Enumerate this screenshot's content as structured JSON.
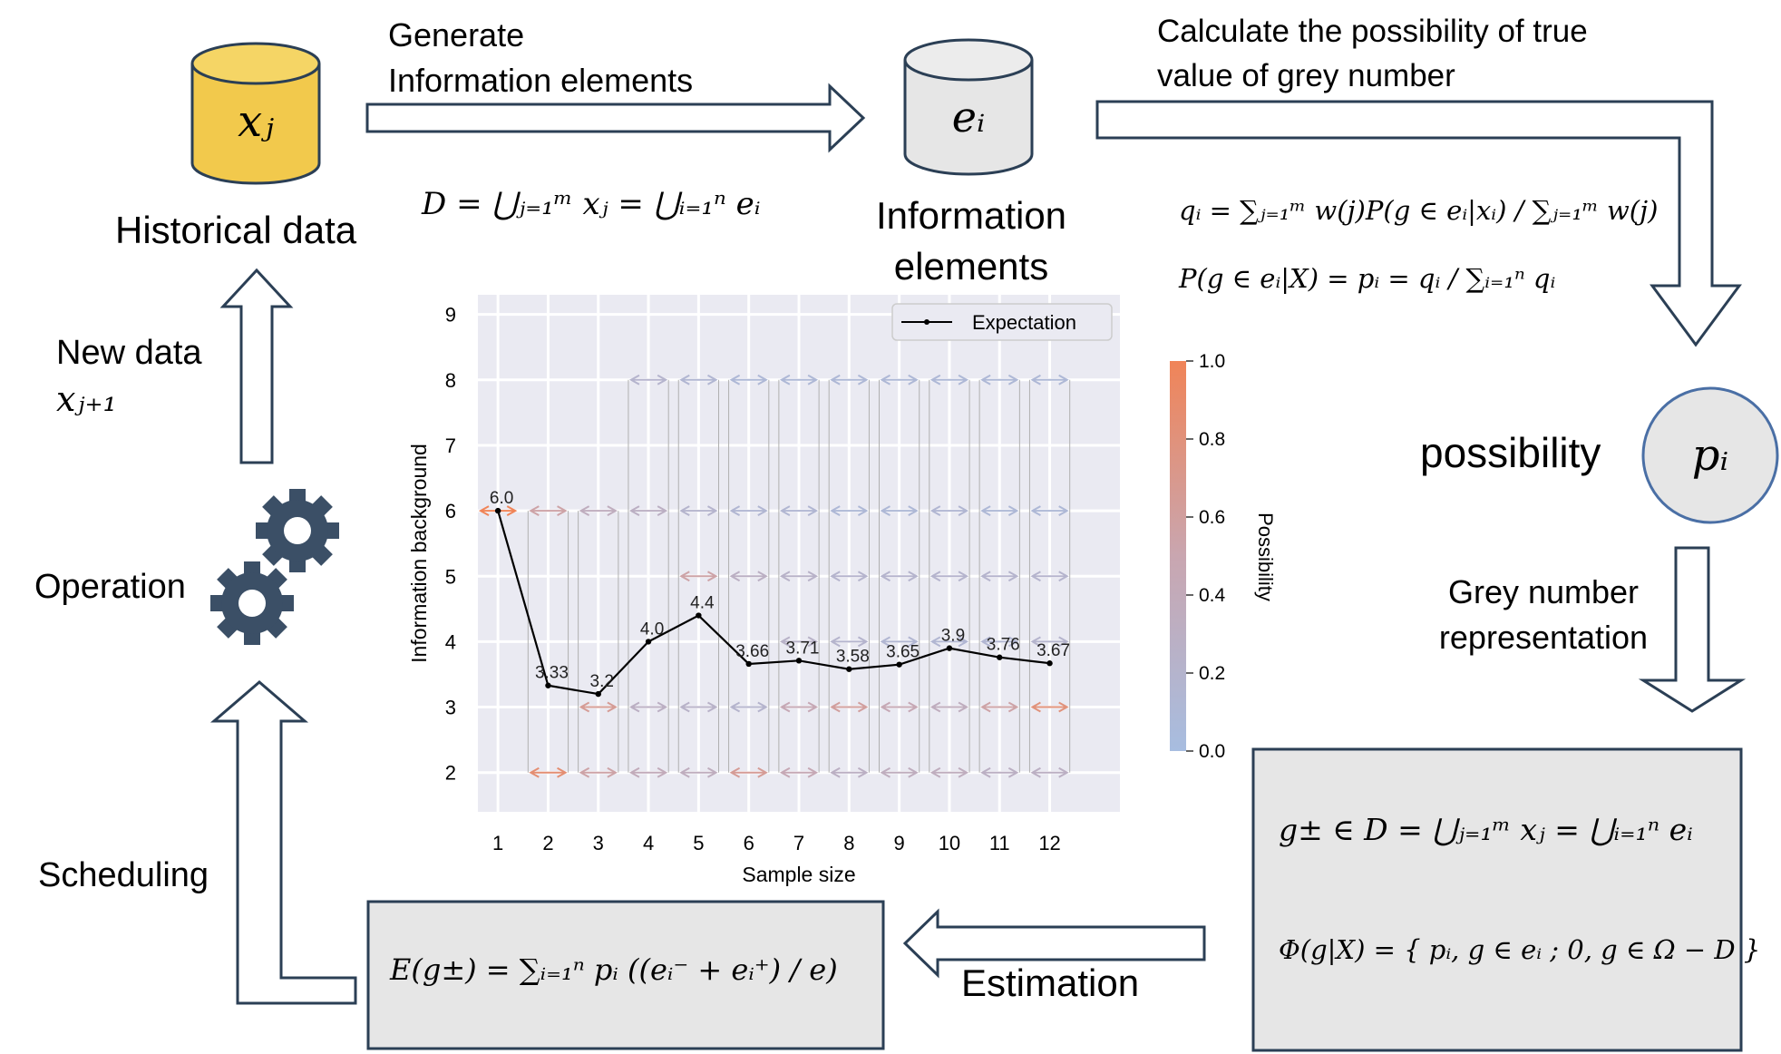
{
  "labels": {
    "generate": [
      "Generate",
      "Information elements"
    ],
    "calculate": [
      "Calculate the possibility of true",
      "value of grey number"
    ],
    "historical": "Historical data",
    "info_elements": [
      "Information",
      "elements"
    ],
    "new_data": "New data",
    "operation": "Operation",
    "scheduling": "Scheduling",
    "possibility": "possibility",
    "grey_repr": [
      "Grey number",
      "representation"
    ],
    "estimation": "Estimation"
  },
  "formulas": {
    "xj": "xⱼ",
    "ei": "eᵢ",
    "pi": "pᵢ",
    "new_x": "xⱼ₊₁",
    "union": "D = ⋃ⱼ₌₁ᵐ xⱼ = ⋃ᵢ₌₁ⁿ eᵢ",
    "qi": "qᵢ = ∑ⱼ₌₁ᵐ w(j)P(g ∈ eᵢ|xᵢ) / ∑ⱼ₌₁ᵐ w(j)",
    "pg": "P(g ∈ eᵢ|X) = pᵢ = qᵢ / ∑ᵢ₌₁ⁿ qᵢ",
    "grey_set": "g± ∈ D = ⋃ⱼ₌₁ᵐ xⱼ = ⋃ᵢ₌₁ⁿ eᵢ",
    "phi": "Φ(g|X) = { pᵢ, g ∈ eᵢ ; 0, g ∈ Ω − D }",
    "expectation": "E(g±) = ∑ᵢ₌₁ⁿ pᵢ ((eᵢ⁻ + eᵢ⁺) / e)"
  },
  "colors": {
    "db_fill": "#f2c94c",
    "grey_fill": "#e6e6e6",
    "circle_edge": "#4a6fa5",
    "outline": "#2b3f55",
    "gear": "#3b4f66",
    "plot_bg": "#eaeaf2",
    "cb_low": "#a7bde0",
    "cb_high": "#f08458"
  },
  "icons": [
    "database-icon",
    "gear-icon"
  ],
  "chart_data": {
    "type": "line",
    "xlabel": "Sample size",
    "ylabel": "Information background",
    "colorbar_label": "Possibility",
    "colorbar_ticks": [
      "0.0",
      "0.2",
      "0.4",
      "0.6",
      "0.8",
      "1.0"
    ],
    "legend": "Expectation",
    "legend_position": "top-right",
    "grid": true,
    "xlim": [
      0.6,
      13.4
    ],
    "ylim": [
      1.4,
      9.3
    ],
    "x_ticks": [
      1,
      2,
      3,
      4,
      5,
      6,
      7,
      8,
      9,
      10,
      11,
      12
    ],
    "y_ticks": [
      2,
      3,
      4,
      5,
      6,
      7,
      8,
      9
    ],
    "series": [
      {
        "name": "Expectation",
        "x": [
          1,
          2,
          3,
          4,
          5,
          6,
          7,
          8,
          9,
          10,
          11,
          12
        ],
        "y": [
          6.0,
          3.33,
          3.2,
          4.0,
          4.4,
          3.66,
          3.71,
          3.58,
          3.65,
          3.9,
          3.76,
          3.67
        ],
        "labels": [
          "6.0",
          "3.33",
          "3.2",
          "4.0",
          "4.4",
          "3.66",
          "3.71",
          "3.58",
          "3.65",
          "3.9",
          "3.76",
          "3.67"
        ]
      }
    ],
    "intervals": [
      {
        "x": 1,
        "items": [
          {
            "y": 6,
            "p": 1.0
          }
        ]
      },
      {
        "x": 2,
        "items": [
          {
            "y": 6,
            "p": 0.55
          },
          {
            "y": 2,
            "p": 0.85
          }
        ]
      },
      {
        "x": 3,
        "items": [
          {
            "y": 6,
            "p": 0.35
          },
          {
            "y": 3,
            "p": 0.65
          },
          {
            "y": 2,
            "p": 0.55
          }
        ]
      },
      {
        "x": 4,
        "items": [
          {
            "y": 8,
            "p": 0.2
          },
          {
            "y": 6,
            "p": 0.3
          },
          {
            "y": 3,
            "p": 0.3
          },
          {
            "y": 2,
            "p": 0.4
          }
        ]
      },
      {
        "x": 5,
        "items": [
          {
            "y": 8,
            "p": 0.15
          },
          {
            "y": 6,
            "p": 0.2
          },
          {
            "y": 5,
            "p": 0.55
          },
          {
            "y": 3,
            "p": 0.25
          },
          {
            "y": 2,
            "p": 0.35
          }
        ]
      },
      {
        "x": 6,
        "items": [
          {
            "y": 8,
            "p": 0.1
          },
          {
            "y": 6,
            "p": 0.15
          },
          {
            "y": 5,
            "p": 0.3
          },
          {
            "y": 3,
            "p": 0.2
          },
          {
            "y": 2,
            "p": 0.65
          }
        ]
      },
      {
        "x": 7,
        "items": [
          {
            "y": 8,
            "p": 0.1
          },
          {
            "y": 6,
            "p": 0.15
          },
          {
            "y": 5,
            "p": 0.25
          },
          {
            "y": 4,
            "p": 0.25
          },
          {
            "y": 3,
            "p": 0.45
          },
          {
            "y": 2,
            "p": 0.45
          }
        ]
      },
      {
        "x": 8,
        "items": [
          {
            "y": 8,
            "p": 0.1
          },
          {
            "y": 6,
            "p": 0.1
          },
          {
            "y": 5,
            "p": 0.2
          },
          {
            "y": 4,
            "p": 0.2
          },
          {
            "y": 3,
            "p": 0.6
          },
          {
            "y": 2,
            "p": 0.3
          }
        ]
      },
      {
        "x": 9,
        "items": [
          {
            "y": 8,
            "p": 0.1
          },
          {
            "y": 6,
            "p": 0.1
          },
          {
            "y": 5,
            "p": 0.2
          },
          {
            "y": 4,
            "p": 0.15
          },
          {
            "y": 3,
            "p": 0.45
          },
          {
            "y": 2,
            "p": 0.35
          }
        ]
      },
      {
        "x": 10,
        "items": [
          {
            "y": 8,
            "p": 0.1
          },
          {
            "y": 6,
            "p": 0.15
          },
          {
            "y": 5,
            "p": 0.2
          },
          {
            "y": 4,
            "p": 0.15
          },
          {
            "y": 3,
            "p": 0.35
          },
          {
            "y": 2,
            "p": 0.35
          }
        ]
      },
      {
        "x": 11,
        "items": [
          {
            "y": 8,
            "p": 0.1
          },
          {
            "y": 6,
            "p": 0.1
          },
          {
            "y": 5,
            "p": 0.2
          },
          {
            "y": 4,
            "p": 0.15
          },
          {
            "y": 3,
            "p": 0.55
          },
          {
            "y": 2,
            "p": 0.3
          }
        ]
      },
      {
        "x": 12,
        "items": [
          {
            "y": 8,
            "p": 0.1
          },
          {
            "y": 6,
            "p": 0.1
          },
          {
            "y": 5,
            "p": 0.2
          },
          {
            "y": 4,
            "p": 0.2
          },
          {
            "y": 3,
            "p": 0.8
          },
          {
            "y": 2,
            "p": 0.3
          }
        ]
      }
    ]
  }
}
